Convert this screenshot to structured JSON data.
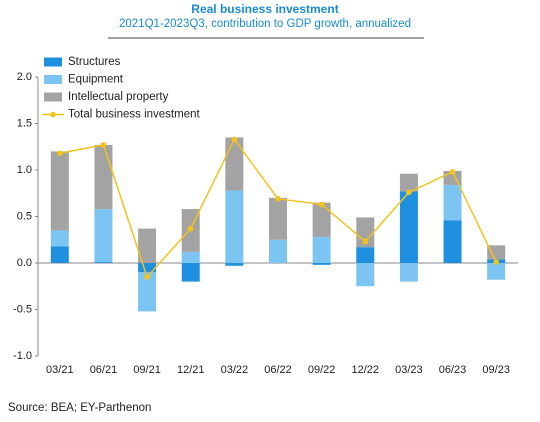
{
  "chart_data": {
    "type": "stacked_bar_line",
    "title": "Real business investment",
    "subtitle": "2021Q1-2023Q3, contribution to GDP growth, annualized",
    "source": "Source: BEA; EY-Parthenon",
    "categories": [
      "03/21",
      "06/21",
      "09/21",
      "12/21",
      "03/22",
      "06/22",
      "09/22",
      "12/22",
      "03/23",
      "06/23",
      "09/23"
    ],
    "series": [
      {
        "name": "Structures",
        "color": "#1f8fe0",
        "kind": "bar",
        "values": [
          0.18,
          0.01,
          -0.1,
          -0.2,
          -0.03,
          0.0,
          -0.02,
          0.17,
          0.77,
          0.46,
          0.04
        ]
      },
      {
        "name": "Equipment",
        "color": "#7cc4f2",
        "kind": "bar",
        "values": [
          0.17,
          0.57,
          -0.42,
          0.12,
          0.78,
          0.25,
          0.28,
          -0.25,
          -0.2,
          0.38,
          -0.18
        ]
      },
      {
        "name": "Intellectual property",
        "color": "#a3a3a3",
        "kind": "bar",
        "values": [
          0.85,
          0.69,
          0.37,
          0.46,
          0.57,
          0.45,
          0.37,
          0.32,
          0.19,
          0.15,
          0.15
        ]
      },
      {
        "name": "Total business investment",
        "color": "#f2c31a",
        "kind": "line",
        "values": [
          1.18,
          1.27,
          -0.15,
          0.37,
          1.33,
          0.69,
          0.63,
          0.23,
          0.76,
          0.98,
          0.01
        ]
      }
    ],
    "ylim": [
      -1,
      2
    ],
    "yticks": [
      {
        "value": -1,
        "label": "-1.0"
      },
      -0.5,
      {
        "value": 0,
        "label": "0.0"
      },
      0.5,
      {
        "value": 1,
        "label": "1.0"
      },
      1.5,
      {
        "value": 2,
        "label": "2.0"
      }
    ],
    "grid": false,
    "legend": "top-left"
  }
}
